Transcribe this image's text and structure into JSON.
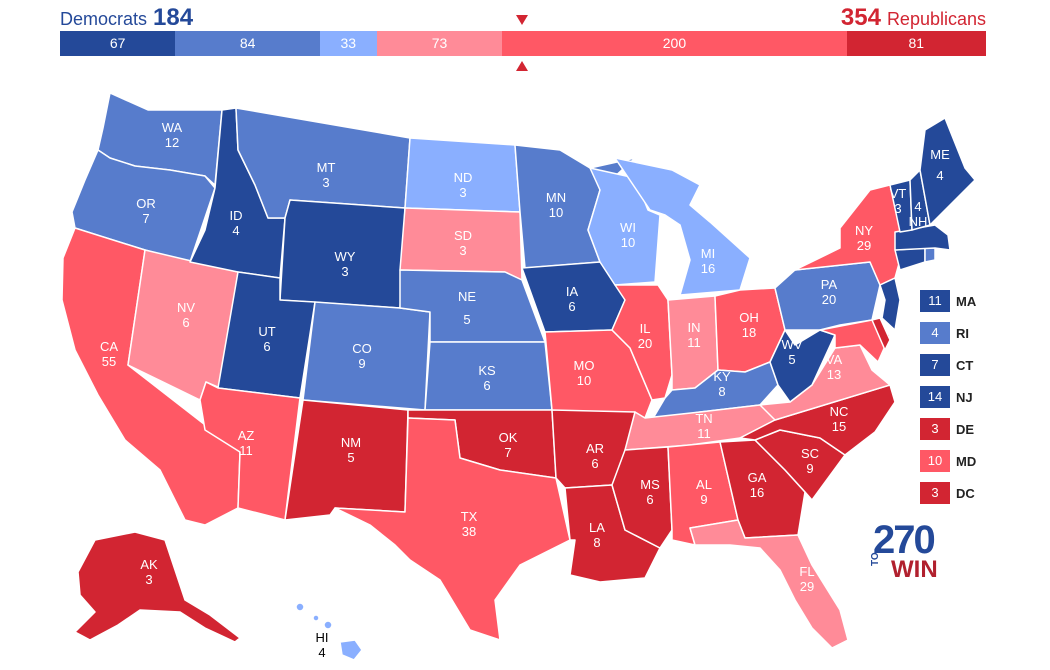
{
  "header": {
    "dem_label": "Democrats",
    "dem_total": "184",
    "rep_total": "354",
    "rep_label": "Republicans"
  },
  "bar_segments": [
    {
      "value": "67",
      "color": "#244999",
      "ev": 67
    },
    {
      "value": "84",
      "color": "#577ccc",
      "ev": 84
    },
    {
      "value": "33",
      "color": "#8aafff",
      "ev": 33
    },
    {
      "value": "73",
      "color": "#ff8b98",
      "ev": 73
    },
    {
      "value": "200",
      "color": "#ff5865",
      "ev": 200
    },
    {
      "value": "81",
      "color": "#d22532",
      "ev": 81
    }
  ],
  "colors": {
    "safe_dem": "#244999",
    "likely_dem": "#577ccc",
    "lean_dem": "#8aafff",
    "lean_rep": "#ff8b98",
    "likely_rep": "#ff5865",
    "safe_rep": "#d22532"
  },
  "states": [
    {
      "abbr": "WA",
      "ev": "12",
      "rating": "likely_dem"
    },
    {
      "abbr": "OR",
      "ev": "7",
      "rating": "likely_dem"
    },
    {
      "abbr": "CA",
      "ev": "55",
      "rating": "likely_rep"
    },
    {
      "abbr": "NV",
      "ev": "6",
      "rating": "lean_rep"
    },
    {
      "abbr": "ID",
      "ev": "4",
      "rating": "safe_dem"
    },
    {
      "abbr": "MT",
      "ev": "3",
      "rating": "likely_dem"
    },
    {
      "abbr": "WY",
      "ev": "3",
      "rating": "safe_dem"
    },
    {
      "abbr": "UT",
      "ev": "6",
      "rating": "safe_dem"
    },
    {
      "abbr": "AZ",
      "ev": "11",
      "rating": "likely_rep"
    },
    {
      "abbr": "CO",
      "ev": "9",
      "rating": "likely_dem"
    },
    {
      "abbr": "NM",
      "ev": "5",
      "rating": "safe_rep"
    },
    {
      "abbr": "ND",
      "ev": "3",
      "rating": "lean_dem"
    },
    {
      "abbr": "SD",
      "ev": "3",
      "rating": "lean_rep"
    },
    {
      "abbr": "NE",
      "ev": "5",
      "rating": "likely_dem"
    },
    {
      "abbr": "KS",
      "ev": "6",
      "rating": "likely_dem"
    },
    {
      "abbr": "OK",
      "ev": "7",
      "rating": "safe_rep"
    },
    {
      "abbr": "TX",
      "ev": "38",
      "rating": "likely_rep"
    },
    {
      "abbr": "MN",
      "ev": "10",
      "rating": "likely_dem"
    },
    {
      "abbr": "IA",
      "ev": "6",
      "rating": "safe_dem"
    },
    {
      "abbr": "MO",
      "ev": "10",
      "rating": "likely_rep"
    },
    {
      "abbr": "AR",
      "ev": "6",
      "rating": "safe_rep"
    },
    {
      "abbr": "LA",
      "ev": "8",
      "rating": "safe_rep"
    },
    {
      "abbr": "WI",
      "ev": "10",
      "rating": "lean_dem"
    },
    {
      "abbr": "IL",
      "ev": "20",
      "rating": "likely_rep"
    },
    {
      "abbr": "MI",
      "ev": "16",
      "rating": "lean_dem"
    },
    {
      "abbr": "IN",
      "ev": "11",
      "rating": "lean_rep"
    },
    {
      "abbr": "OH",
      "ev": "18",
      "rating": "likely_rep"
    },
    {
      "abbr": "KY",
      "ev": "8",
      "rating": "likely_dem"
    },
    {
      "abbr": "TN",
      "ev": "11",
      "rating": "lean_rep"
    },
    {
      "abbr": "MS",
      "ev": "6",
      "rating": "safe_rep"
    },
    {
      "abbr": "AL",
      "ev": "9",
      "rating": "likely_rep"
    },
    {
      "abbr": "GA",
      "ev": "16",
      "rating": "safe_rep"
    },
    {
      "abbr": "FL",
      "ev": "29",
      "rating": "lean_rep"
    },
    {
      "abbr": "SC",
      "ev": "9",
      "rating": "safe_rep"
    },
    {
      "abbr": "NC",
      "ev": "15",
      "rating": "safe_rep"
    },
    {
      "abbr": "VA",
      "ev": "13",
      "rating": "lean_rep"
    },
    {
      "abbr": "WV",
      "ev": "5",
      "rating": "safe_dem"
    },
    {
      "abbr": "PA",
      "ev": "20",
      "rating": "likely_dem"
    },
    {
      "abbr": "NY",
      "ev": "29",
      "rating": "likely_rep"
    },
    {
      "abbr": "VT",
      "ev": "3",
      "rating": "safe_dem"
    },
    {
      "abbr": "NH",
      "ev": "4",
      "rating": "safe_dem"
    },
    {
      "abbr": "ME",
      "ev": "4",
      "rating": "safe_dem"
    },
    {
      "abbr": "AK",
      "ev": "3",
      "rating": "safe_rep"
    },
    {
      "abbr": "HI",
      "ev": "4",
      "rating": "lean_dem"
    }
  ],
  "legend": [
    {
      "value": "11",
      "name": "MA",
      "rating": "safe_dem"
    },
    {
      "value": "4",
      "name": "RI",
      "rating": "likely_dem"
    },
    {
      "value": "7",
      "name": "CT",
      "rating": "safe_dem"
    },
    {
      "value": "14",
      "name": "NJ",
      "rating": "safe_dem"
    },
    {
      "value": "3",
      "name": "DE",
      "rating": "safe_rep"
    },
    {
      "value": "10",
      "name": "MD",
      "rating": "likely_rep"
    },
    {
      "value": "3",
      "name": "DC",
      "rating": "safe_rep"
    }
  ],
  "logo": {
    "number": "270",
    "to": "TO",
    "win": "WIN"
  }
}
